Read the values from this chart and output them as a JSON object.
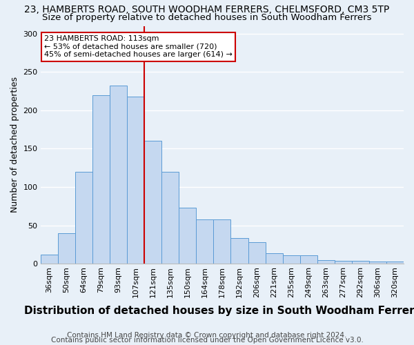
{
  "title": "23, HAMBERTS ROAD, SOUTH WOODHAM FERRERS, CHELMSFORD, CM3 5TP",
  "subtitle": "Size of property relative to detached houses in South Woodham Ferrers",
  "xlabel": "Distribution of detached houses by size in South Woodham Ferrers",
  "ylabel": "Number of detached properties",
  "footer1": "Contains HM Land Registry data © Crown copyright and database right 2024.",
  "footer2": "Contains public sector information licensed under the Open Government Licence v3.0.",
  "categories": [
    "36sqm",
    "50sqm",
    "64sqm",
    "79sqm",
    "93sqm",
    "107sqm",
    "121sqm",
    "135sqm",
    "150sqm",
    "164sqm",
    "178sqm",
    "192sqm",
    "206sqm",
    "221sqm",
    "235sqm",
    "249sqm",
    "263sqm",
    "277sqm",
    "292sqm",
    "306sqm",
    "320sqm"
  ],
  "values": [
    12,
    40,
    120,
    220,
    232,
    218,
    160,
    120,
    73,
    58,
    58,
    33,
    28,
    14,
    11,
    11,
    5,
    4,
    4,
    3,
    3
  ],
  "bar_color": "#c5d8f0",
  "bar_edge_color": "#5a9bd5",
  "background_color": "#e8f0f8",
  "grid_color": "#ffffff",
  "ylim": [
    0,
    310
  ],
  "yticks": [
    0,
    50,
    100,
    150,
    200,
    250,
    300
  ],
  "property_label": "23 HAMBERTS ROAD: 113sqm",
  "annotation_line1": "← 53% of detached houses are smaller (720)",
  "annotation_line2": "45% of semi-detached houses are larger (614) →",
  "vline_color": "#cc0000",
  "annotation_box_edge": "#cc0000",
  "title_fontsize": 10,
  "subtitle_fontsize": 9.5,
  "xlabel_fontsize": 11,
  "ylabel_fontsize": 9,
  "tick_fontsize": 8,
  "annot_fontsize": 8,
  "footer_fontsize": 7.5
}
